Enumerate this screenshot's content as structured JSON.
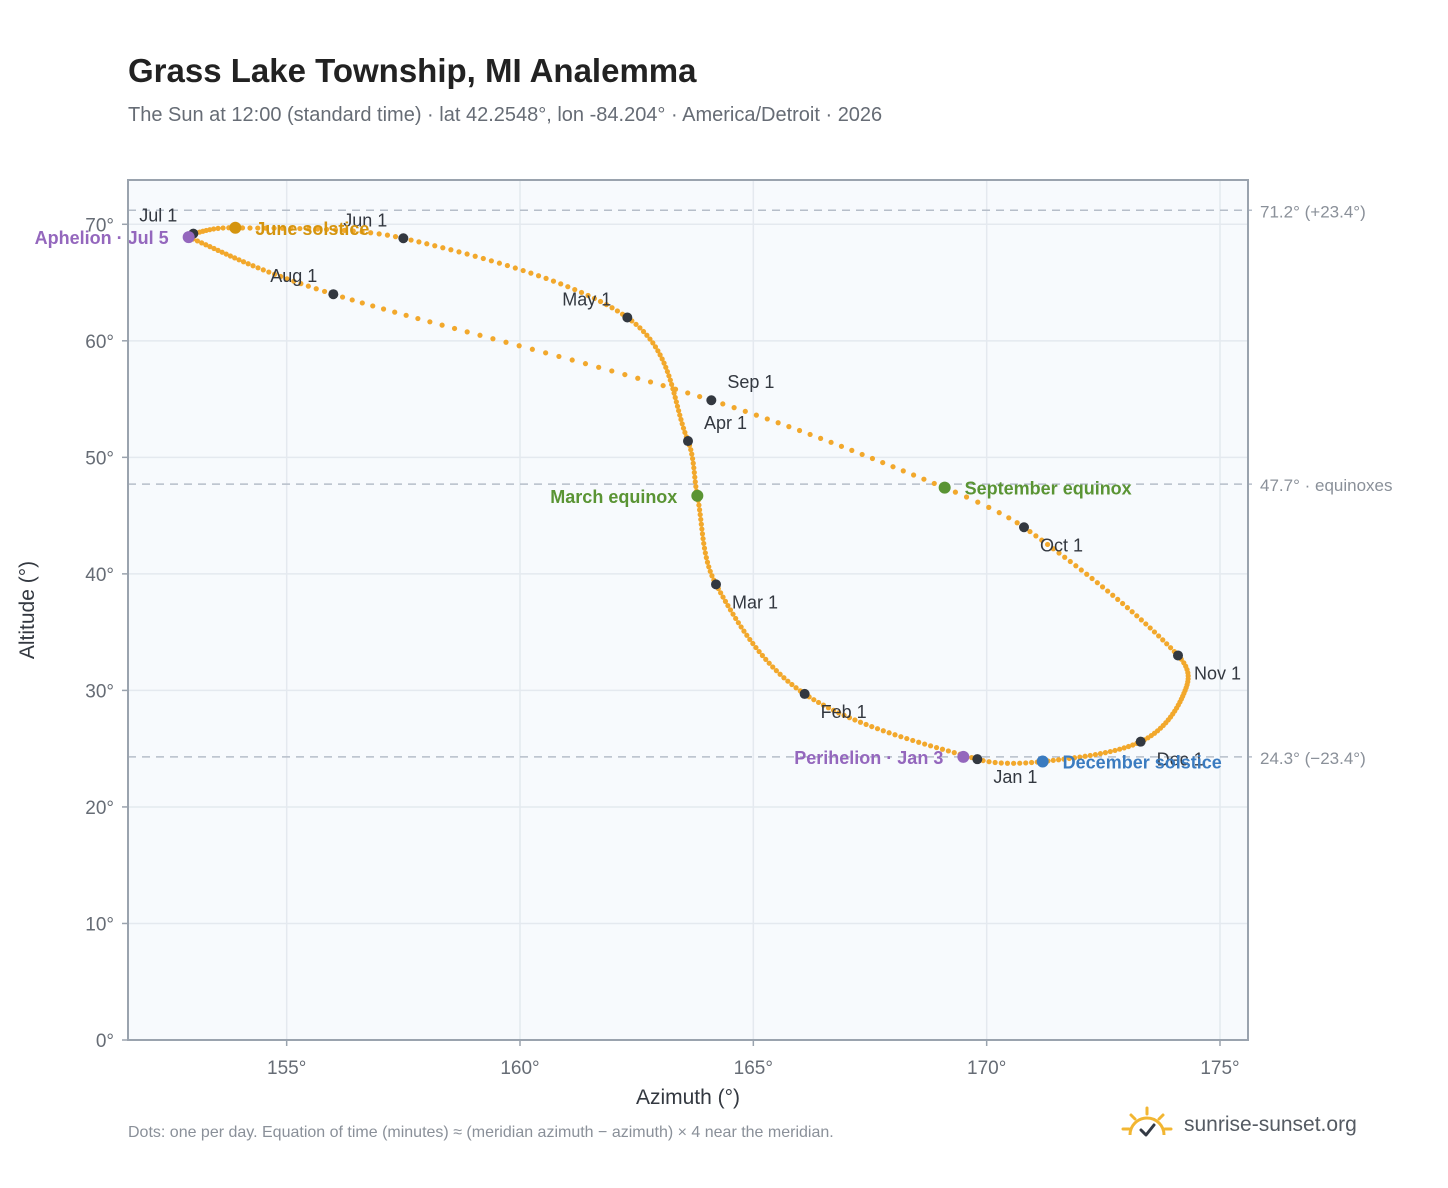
{
  "header": {
    "title": "Grass Lake Township, MI Analemma",
    "subtitle": "The Sun at 12:00 (standard time) · lat 42.2548°, lon -84.204° · America/Detroit · 2026"
  },
  "footer": {
    "note": "Dots: one per day. Equation of time (minutes) ≈ (meridian azimuth − azimuth) × 4 near the meridian.",
    "brand": "sunrise-sunset.org"
  },
  "colors": {
    "path": "#f2a82c",
    "month_marker": "#333840",
    "june_solstice": "#d4940f",
    "december_solstice": "#3a7bc0",
    "equinox": "#5a9434",
    "apsis": "#9467bd",
    "plot_bg": "#f7fafd",
    "grid": "#e4e9ef",
    "reference_line": "#b6bec9"
  },
  "chart_data": {
    "type": "scatter",
    "xlabel": "Azimuth (°)",
    "ylabel": "Altitude (°)",
    "xlim": [
      151.6,
      175.6
    ],
    "ylim": [
      0,
      73.8
    ],
    "xticks": [
      155,
      160,
      165,
      170,
      175
    ],
    "yticks": [
      0,
      10,
      20,
      30,
      40,
      50,
      60,
      70
    ],
    "grid": true,
    "series": [
      {
        "points_per_day": 1,
        "note_path": "anchor dates define daily curve"
      }
    ],
    "anchors": [
      {
        "doy": 1,
        "az": 169.8,
        "alt": 24.1
      },
      {
        "doy": 32,
        "az": 166.1,
        "alt": 29.7
      },
      {
        "doy": 60,
        "az": 164.2,
        "alt": 39.1
      },
      {
        "doy": 79,
        "az": 163.8,
        "alt": 46.7
      },
      {
        "doy": 91,
        "az": 163.6,
        "alt": 51.4
      },
      {
        "doy": 121,
        "az": 162.3,
        "alt": 62.0
      },
      {
        "doy": 152,
        "az": 157.5,
        "alt": 68.8
      },
      {
        "doy": 172,
        "az": 153.9,
        "alt": 69.7
      },
      {
        "doy": 182,
        "az": 153.0,
        "alt": 69.2
      },
      {
        "doy": 186,
        "az": 152.9,
        "alt": 68.9
      },
      {
        "doy": 213,
        "az": 156.0,
        "alt": 64.0
      },
      {
        "doy": 244,
        "az": 164.1,
        "alt": 54.9
      },
      {
        "doy": 266,
        "az": 169.1,
        "alt": 47.4
      },
      {
        "doy": 274,
        "az": 170.8,
        "alt": 44.0
      },
      {
        "doy": 305,
        "az": 174.1,
        "alt": 33.0
      },
      {
        "doy": 318,
        "az": 174.2,
        "alt": 29.5
      },
      {
        "doy": 335,
        "az": 173.3,
        "alt": 25.6
      },
      {
        "doy": 355,
        "az": 171.2,
        "alt": 23.9
      },
      {
        "doy": 366,
        "az": 169.8,
        "alt": 24.1
      }
    ],
    "month_markers": [
      {
        "label": "Jan 1",
        "az": 169.8,
        "alt": 24.1,
        "pos": "below-right"
      },
      {
        "label": "Feb 1",
        "az": 166.1,
        "alt": 29.7,
        "pos": "below-right"
      },
      {
        "label": "Mar 1",
        "az": 164.2,
        "alt": 39.1,
        "pos": "below-right"
      },
      {
        "label": "Apr 1",
        "az": 163.6,
        "alt": 51.4,
        "pos": "above-right"
      },
      {
        "label": "May 1",
        "az": 162.3,
        "alt": 62.0,
        "pos": "above-left"
      },
      {
        "label": "Jun 1",
        "az": 157.5,
        "alt": 68.8,
        "pos": "above-left"
      },
      {
        "label": "Jul 1",
        "az": 153.0,
        "alt": 69.2,
        "pos": "above-left"
      },
      {
        "label": "Aug 1",
        "az": 156.0,
        "alt": 64.0,
        "pos": "above-left"
      },
      {
        "label": "Sep 1",
        "az": 164.1,
        "alt": 54.9,
        "pos": "above-right"
      },
      {
        "label": "Oct 1",
        "az": 170.8,
        "alt": 44.0,
        "pos": "below-right"
      },
      {
        "label": "Nov 1",
        "az": 174.1,
        "alt": 33.0,
        "pos": "below-right"
      },
      {
        "label": "Dec 1",
        "az": 173.3,
        "alt": 25.6,
        "pos": "below-right"
      }
    ],
    "events": [
      {
        "label": "June solstice",
        "az": 153.9,
        "alt": 69.7,
        "color_key": "june_solstice",
        "side": "right"
      },
      {
        "label": "December solstice",
        "az": 171.2,
        "alt": 23.9,
        "color_key": "december_solstice",
        "side": "right"
      },
      {
        "label": "March equinox",
        "az": 163.8,
        "alt": 46.7,
        "color_key": "equinox",
        "side": "left"
      },
      {
        "label": "September equinox",
        "az": 169.1,
        "alt": 47.4,
        "color_key": "equinox",
        "side": "right"
      },
      {
        "label": "Aphelion · Jul 5",
        "az": 152.9,
        "alt": 68.9,
        "color_key": "apsis",
        "side": "left"
      },
      {
        "label": "Perihelion · Jan 3",
        "az": 169.5,
        "alt": 24.3,
        "color_key": "apsis",
        "side": "left"
      }
    ],
    "reference_lines": [
      {
        "alt": 71.2,
        "label": "71.2° (+23.4°)"
      },
      {
        "alt": 47.7,
        "label": "47.7° · equinoxes"
      },
      {
        "alt": 24.3,
        "label": "24.3° (−23.4°)"
      }
    ]
  }
}
